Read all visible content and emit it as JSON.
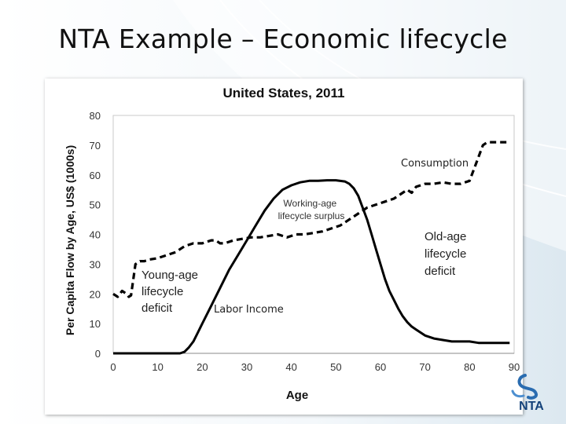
{
  "slide": {
    "title": "NTA Example – Economic lifecycle"
  },
  "logo": {
    "text": "NTA"
  },
  "chart_data": {
    "type": "line",
    "title": "United States, 2011",
    "xlabel": "Age",
    "ylabel": "Per Capita Flow by Age, US$ (1000s)",
    "xlim": [
      0,
      90
    ],
    "ylim": [
      0,
      80
    ],
    "x_ticks": [
      0,
      10,
      20,
      30,
      40,
      50,
      60,
      70,
      80,
      90
    ],
    "y_ticks": [
      0,
      10,
      20,
      30,
      40,
      50,
      60,
      70,
      80
    ],
    "series": [
      {
        "name": "Consumption",
        "style": "dashed",
        "color": "#000000",
        "points": [
          [
            0,
            20
          ],
          [
            1,
            19
          ],
          [
            2,
            21
          ],
          [
            3,
            20
          ],
          [
            3.5,
            19
          ],
          [
            4,
            19.5
          ],
          [
            5,
            30
          ],
          [
            6,
            31
          ],
          [
            7,
            31
          ],
          [
            8,
            31.5
          ],
          [
            10,
            32
          ],
          [
            12,
            33
          ],
          [
            14,
            34
          ],
          [
            16,
            36
          ],
          [
            18,
            37
          ],
          [
            20,
            37
          ],
          [
            22,
            38
          ],
          [
            23,
            38
          ],
          [
            24,
            37
          ],
          [
            25,
            37
          ],
          [
            27,
            38
          ],
          [
            29,
            38.5
          ],
          [
            31,
            39
          ],
          [
            33,
            39
          ],
          [
            35,
            39.5
          ],
          [
            37,
            40
          ],
          [
            39,
            39
          ],
          [
            41,
            40
          ],
          [
            43,
            40
          ],
          [
            45,
            40.5
          ],
          [
            47,
            41
          ],
          [
            49,
            42
          ],
          [
            51,
            43
          ],
          [
            53,
            45
          ],
          [
            55,
            47
          ],
          [
            57,
            49
          ],
          [
            59,
            50
          ],
          [
            61,
            51
          ],
          [
            63,
            52
          ],
          [
            65,
            54
          ],
          [
            66,
            55
          ],
          [
            67,
            54
          ],
          [
            68,
            56
          ],
          [
            70,
            57
          ],
          [
            72,
            57
          ],
          [
            74,
            57.5
          ],
          [
            76,
            57
          ],
          [
            78,
            57
          ],
          [
            80,
            58
          ],
          [
            81,
            62
          ],
          [
            82,
            66
          ],
          [
            83,
            70
          ],
          [
            84,
            71
          ],
          [
            86,
            71
          ],
          [
            88,
            71
          ],
          [
            89,
            71
          ]
        ]
      },
      {
        "name": "Labor Income",
        "style": "solid",
        "color": "#000000",
        "points": [
          [
            0,
            0
          ],
          [
            10,
            0
          ],
          [
            15,
            0
          ],
          [
            16,
            0.5
          ],
          [
            17,
            2
          ],
          [
            18,
            4
          ],
          [
            19,
            7
          ],
          [
            20,
            10
          ],
          [
            22,
            16
          ],
          [
            24,
            22
          ],
          [
            26,
            28
          ],
          [
            28,
            33
          ],
          [
            30,
            38
          ],
          [
            32,
            43
          ],
          [
            34,
            48
          ],
          [
            36,
            52
          ],
          [
            38,
            55
          ],
          [
            40,
            56.5
          ],
          [
            42,
            57.5
          ],
          [
            44,
            58
          ],
          [
            46,
            58
          ],
          [
            48,
            58.2
          ],
          [
            50,
            58.2
          ],
          [
            52,
            57.8
          ],
          [
            53,
            57
          ],
          [
            54,
            55.5
          ],
          [
            55,
            53
          ],
          [
            56,
            49
          ],
          [
            57,
            45
          ],
          [
            58,
            40
          ],
          [
            59,
            35
          ],
          [
            60,
            30
          ],
          [
            61,
            25
          ],
          [
            62,
            21
          ],
          [
            63,
            18
          ],
          [
            64,
            15
          ],
          [
            65,
            12.5
          ],
          [
            66,
            10.5
          ],
          [
            67,
            9
          ],
          [
            68,
            8
          ],
          [
            69,
            7
          ],
          [
            70,
            6
          ],
          [
            72,
            5
          ],
          [
            74,
            4.5
          ],
          [
            76,
            4
          ],
          [
            78,
            4
          ],
          [
            80,
            4
          ],
          [
            82,
            3.5
          ],
          [
            84,
            3.5
          ],
          [
            86,
            3.5
          ],
          [
            88,
            3.5
          ],
          [
            89,
            3.5
          ]
        ]
      }
    ],
    "annotations": [
      {
        "text": "Consumption",
        "x": 74,
        "y": 63.5
      },
      {
        "text": "Labor Income",
        "x": 32,
        "y": 14
      },
      {
        "text": "Working-age lifecycle surplus",
        "x": 45,
        "y": 50
      },
      {
        "text": "Young-age lifecycle deficit",
        "x": 6.5,
        "y": 27
      },
      {
        "text": "Old-age lifecycle deficit",
        "x": 75,
        "y": 40
      }
    ]
  }
}
